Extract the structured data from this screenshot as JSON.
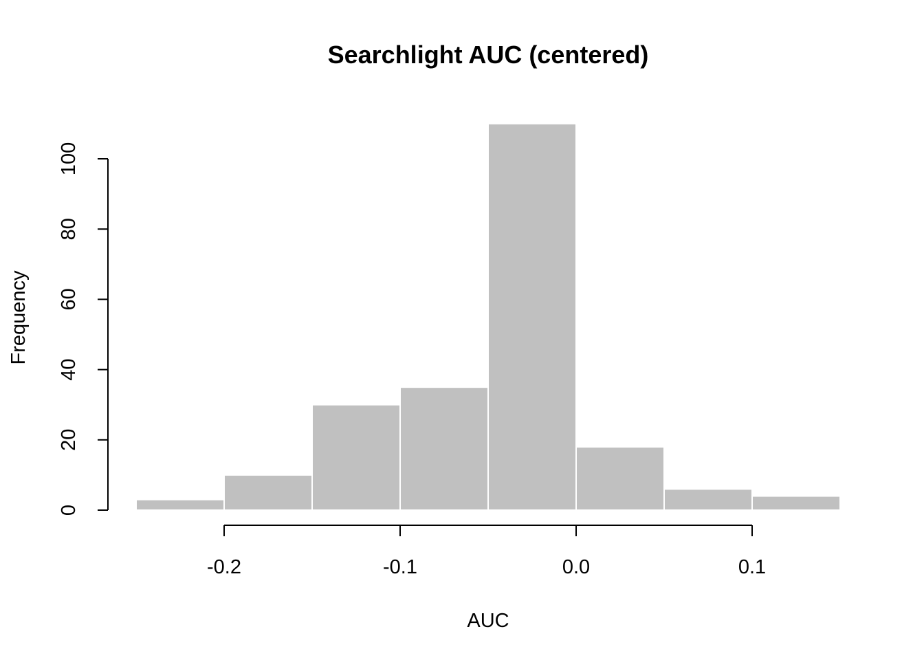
{
  "chart_data": {
    "type": "bar",
    "title": "Searchlight AUC (centered)",
    "xlabel": "AUC",
    "ylabel": "Frequency",
    "bins": [
      {
        "start": -0.25,
        "end": -0.2,
        "count": 3
      },
      {
        "start": -0.2,
        "end": -0.15,
        "count": 10
      },
      {
        "start": -0.15,
        "end": -0.1,
        "count": 30
      },
      {
        "start": -0.1,
        "end": -0.05,
        "count": 35
      },
      {
        "start": -0.05,
        "end": 0.0,
        "count": 110
      },
      {
        "start": 0.0,
        "end": 0.05,
        "count": 18
      },
      {
        "start": 0.05,
        "end": 0.1,
        "count": 6
      },
      {
        "start": 0.1,
        "end": 0.15,
        "count": 4
      }
    ],
    "xlim": [
      -0.25,
      0.15
    ],
    "ylim": [
      0,
      110
    ],
    "x_ticks": [
      -0.2,
      -0.1,
      0.0,
      0.1
    ],
    "x_tick_labels": [
      "-0.2",
      "-0.1",
      "0.0",
      "0.1"
    ],
    "y_ticks": [
      0,
      20,
      40,
      60,
      80,
      100
    ],
    "y_tick_labels": [
      "0",
      "20",
      "40",
      "60",
      "80",
      "100"
    ],
    "bar_color": "#c0c0c0",
    "bar_border_color": "#ffffff",
    "grid": false
  }
}
